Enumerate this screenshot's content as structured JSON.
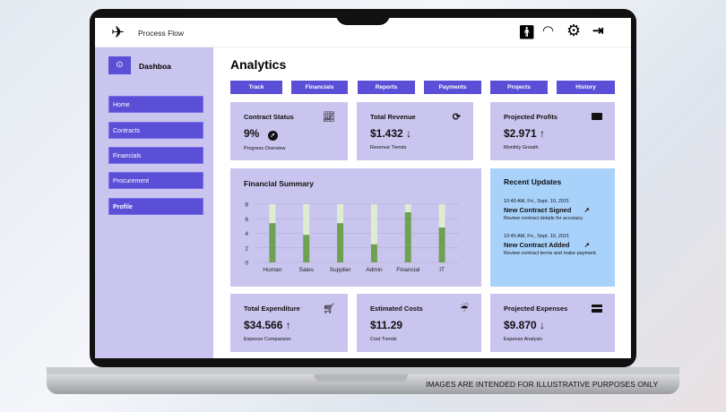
{
  "header": {
    "title": "Process Flow",
    "icons": [
      "airplane-icon",
      "person-icon",
      "speedometer-icon",
      "gear-icon",
      "logout-icon"
    ]
  },
  "sidebar": {
    "title": "Dashboa",
    "items": [
      {
        "label": "Home"
      },
      {
        "label": "Contracts"
      },
      {
        "label": "Financials"
      },
      {
        "label": "Procurement"
      },
      {
        "label": "Profile"
      }
    ]
  },
  "main": {
    "title": "Analytics",
    "tabs": [
      {
        "label": "Track"
      },
      {
        "label": "Financials"
      },
      {
        "label": "Reports"
      },
      {
        "label": "Payments"
      },
      {
        "label": "Projects"
      },
      {
        "label": "History"
      }
    ]
  },
  "cards_top": [
    {
      "title": "Contract Status",
      "value": "9%",
      "trend_icon": "compass-icon",
      "subtitle": "Progress Overview",
      "icon": "chart-line-icon"
    },
    {
      "title": "Total Revenue",
      "value": "$1.432",
      "trend": "↓",
      "subtitle": "Revenue Trends",
      "icon": "refresh-icon"
    },
    {
      "title": "Projected Profits",
      "value": "$2.971",
      "trend": "↑",
      "subtitle": "Monthly Growth",
      "icon": "money-icon"
    }
  ],
  "cards_bottom": [
    {
      "title": "Total Expenditure",
      "value": "$34.566",
      "trend": "↑",
      "subtitle": "Expense Comparison",
      "icon": "cart-icon"
    },
    {
      "title": "Estimated Costs",
      "value": "$11.29",
      "trend": "",
      "subtitle": "Cost Trends",
      "icon": "rain-cloud-icon"
    },
    {
      "title": "Projected Expenses",
      "value": "$9.870",
      "trend": "↓",
      "subtitle": "Expense Analysis",
      "icon": "credit-card-icon"
    }
  ],
  "updates": {
    "title": "Recent Updates",
    "items": [
      {
        "time": "10:40 AM, Fri., Sept. 10, 2021",
        "title": "New Contract Signed",
        "desc": "Review contract details for accuracy."
      },
      {
        "time": "10:40 AM, Fri., Sept. 10, 2021",
        "title": "New Contract Added",
        "desc": "Review contract terms and make payment."
      }
    ]
  },
  "chart_data": {
    "type": "bar",
    "stacked": true,
    "title": "Financial Summary",
    "categories": [
      "Human",
      "Sales",
      "Supplier",
      "Admin",
      "Financial",
      "IT"
    ],
    "series": [
      {
        "values": [
          5.4,
          3.8,
          5.4,
          2.5,
          6.9,
          4.8
        ],
        "color": "#6fa152"
      },
      {
        "values": [
          2.6,
          4.2,
          2.6,
          5.5,
          1.1,
          3.2
        ],
        "color": "#deedd2"
      }
    ],
    "ylim": [
      0,
      8
    ],
    "yticks": [
      0,
      2,
      4,
      6,
      8
    ],
    "grid": true
  },
  "disclaimer": "IMAGES ARE INTENDED FOR ILLUSTRATIVE PURPOSES ONLY",
  "colors": {
    "accent": "#5a4fd6",
    "panel": "#c9c5ee",
    "updates": "#a9d2fb"
  }
}
